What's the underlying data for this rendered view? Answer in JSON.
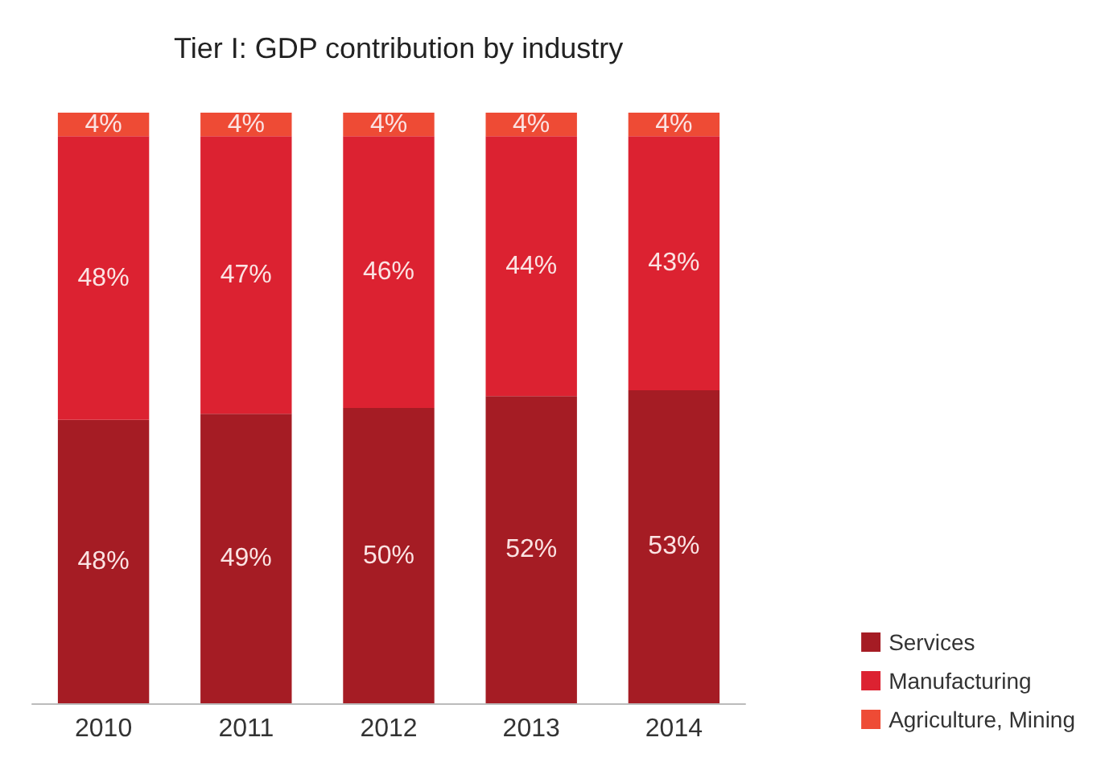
{
  "chart_data": {
    "type": "bar",
    "title": "Tier I: GDP contribution by industry",
    "stacked": true,
    "categories": [
      "2010",
      "2011",
      "2012",
      "2013",
      "2014"
    ],
    "series": [
      {
        "name": "Services",
        "color": "#a51c24",
        "values": [
          48,
          49,
          50,
          52,
          53
        ],
        "value_labels": [
          "48%",
          "49%",
          "50%",
          "52%",
          "53%"
        ]
      },
      {
        "name": "Manufacturing",
        "color": "#dc2231",
        "values": [
          48,
          47,
          46,
          44,
          43
        ],
        "value_labels": [
          "48%",
          "47%",
          "46%",
          "44%",
          "43%"
        ]
      },
      {
        "name": "Agriculture, Mining",
        "color": "#ee4b35",
        "values": [
          4,
          4,
          4,
          4,
          4
        ],
        "value_labels": [
          "4%",
          "4%",
          "4%",
          "4%",
          "4%"
        ]
      }
    ],
    "legend": "bottom right"
  }
}
